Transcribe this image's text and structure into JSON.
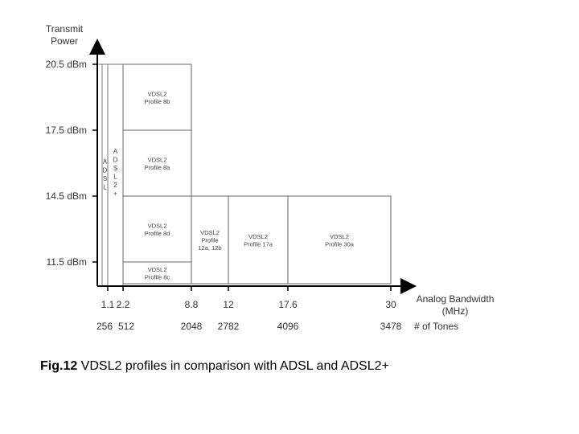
{
  "y_axis": {
    "title_line1": "Transmit",
    "title_line2": "Power",
    "ticks": [
      {
        "label": "20.5 dBm",
        "value": 20.5
      },
      {
        "label": "17.5 dBm",
        "value": 17.5
      },
      {
        "label": "14.5 dBm",
        "value": 14.5
      },
      {
        "label": "11.5 dBm",
        "value": 11.5
      }
    ]
  },
  "x_axis": {
    "title_line1": "Analog Bandwidth",
    "title_line2": "(MHz)",
    "tones_title": "# of Tones",
    "ticks": [
      {
        "label": "1.1",
        "value": 1.1
      },
      {
        "label": "2.2",
        "value": 2.2
      },
      {
        "label": "8.8",
        "value": 8.8
      },
      {
        "label": "12",
        "value": 12
      },
      {
        "label": "17.6",
        "value": 17.6
      },
      {
        "label": "30",
        "value": 30
      }
    ],
    "tones": [
      {
        "label": "256",
        "value": 1.1
      },
      {
        "label": "512",
        "value": 2.2
      },
      {
        "label": "2048",
        "value": 8.8
      },
      {
        "label": "2782",
        "value": 12
      },
      {
        "label": "4096",
        "value": 17.6
      },
      {
        "label": "3478",
        "value": 30
      }
    ]
  },
  "profiles": [
    {
      "lines": [
        "VDSL2",
        "Profile 8b"
      ],
      "x0": 2.2,
      "x1": 8.8,
      "y0": 17.5,
      "y1": 20.5
    },
    {
      "lines": [
        "VDSL2",
        "Profile 8a"
      ],
      "x0": 2.2,
      "x1": 8.8,
      "y0": 14.5,
      "y1": 17.5
    },
    {
      "lines": [
        "VDSL2",
        "Profile 8d"
      ],
      "x0": 2.2,
      "x1": 8.8,
      "y0": 11.5,
      "y1": 14.5
    },
    {
      "lines": [
        "VDSL2",
        "Profile 8c"
      ],
      "x0": 2.2,
      "x1": 8.8,
      "y0": 10.5,
      "y1": 11.5
    },
    {
      "lines": [
        "VDSL2",
        "Profile",
        "12a, 12b"
      ],
      "x0": 8.8,
      "x1": 12,
      "y0": 10.5,
      "y1": 14.5
    },
    {
      "lines": [
        "VDSL2",
        "Profile 17a"
      ],
      "x0": 12,
      "x1": 17.6,
      "y0": 10.5,
      "y1": 14.5
    },
    {
      "lines": [
        "VDSL2",
        "Profile 30a"
      ],
      "x0": 17.6,
      "x1": 30,
      "y0": 10.5,
      "y1": 14.5
    }
  ],
  "adsl": {
    "letters": [
      "A",
      "D",
      "S",
      "L"
    ],
    "x0": 0.6,
    "x1": 1.1,
    "y0": 10.5,
    "y1": 20.5
  },
  "adsl2plus": {
    "letters": [
      "A",
      "D",
      "S",
      "L",
      "2",
      "+"
    ],
    "x0": 1.1,
    "x1": 2.2,
    "y0": 10.5,
    "y1": 20.5
  },
  "caption": {
    "bold": "Fig.12",
    "text": " VDSL2 profiles in comparison with ADSL and ADSL2+"
  }
}
